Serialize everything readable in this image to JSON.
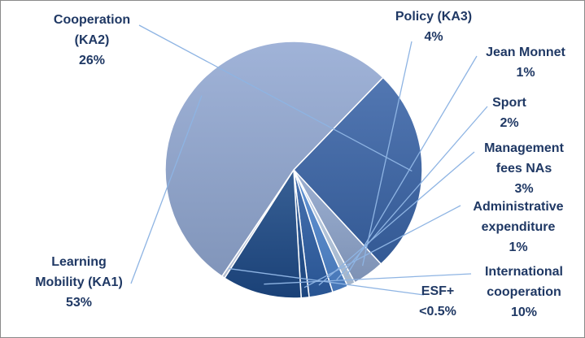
{
  "chart_data": {
    "type": "pie",
    "title": "",
    "slices": [
      {
        "label_lines": [
          "Cooperation",
          "(KA2)"
        ],
        "pct_text": "26%",
        "value": 26,
        "color": "#3a65a8"
      },
      {
        "label_lines": [
          "Policy (KA3)"
        ],
        "pct_text": "4%",
        "value": 4,
        "color": "#8ea5cc"
      },
      {
        "label_lines": [
          "Jean Monnet"
        ],
        "pct_text": "1%",
        "value": 1,
        "color": "#b8cce6"
      },
      {
        "label_lines": [
          "Sport"
        ],
        "pct_text": "2%",
        "value": 2,
        "color": "#4f86cf"
      },
      {
        "label_lines": [
          "Management",
          "fees NAs"
        ],
        "pct_text": "3%",
        "value": 3,
        "color": "#2e5fa6"
      },
      {
        "label_lines": [
          "Administrative",
          "expenditure"
        ],
        "pct_text": "1%",
        "value": 1,
        "color": "#1f4e8f"
      },
      {
        "label_lines": [
          "International",
          "cooperation"
        ],
        "pct_text": "10%",
        "value": 10,
        "color": "#1d4a87"
      },
      {
        "label_lines": [
          "ESF+"
        ],
        "pct_text": "<0.5%",
        "value": 0.4,
        "color": "#c9d5ea"
      },
      {
        "label_lines": [
          "Learning",
          "Mobility (KA1)"
        ],
        "pct_text": "53%",
        "value": 53,
        "color": "#93a9d3"
      }
    ]
  }
}
